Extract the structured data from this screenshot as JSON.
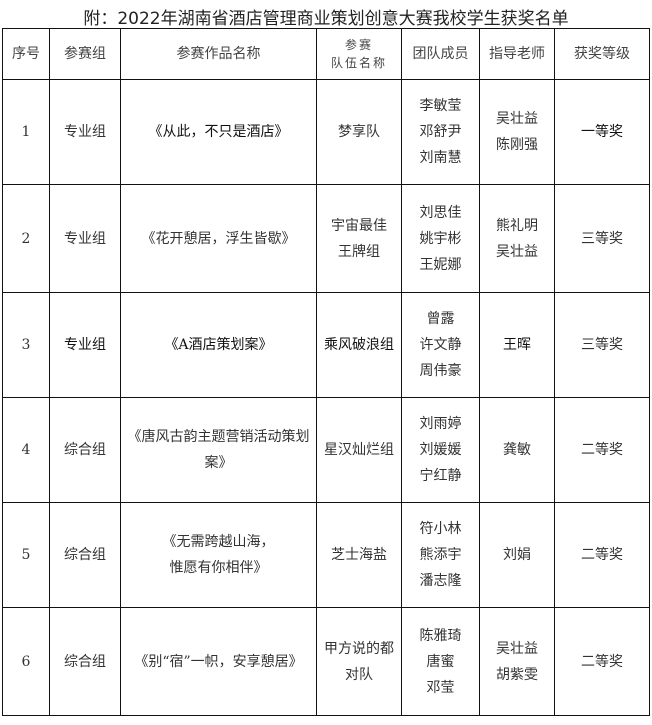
{
  "title": "附：2022年湖南省酒店管理商业策划创意大赛我校学生获奖名单",
  "headers": [
    "序号",
    "参赛组",
    "参赛作品名称",
    "参赛\n队伍名称",
    "团队成员",
    "指导老师",
    "获奖等级"
  ],
  "rows": [
    {
      "no": "1",
      "group": "专业组",
      "work": "《从此，不只是酒店》",
      "team": "梦享队",
      "members": "李敏莹\n邓舒尹\n刘南慧",
      "advisors": "吴壮益\n陈刚强",
      "award": "一等奖"
    },
    {
      "no": "2",
      "group": "专业组",
      "work": "《花开憩居，浮生皆歇》",
      "team": "宇宙最佳\n王牌组",
      "members": "刘思佳\n姚宇彬\n王妮娜",
      "advisors": "熊礼明\n吴壮益",
      "award": "三等奖"
    },
    {
      "no": "3",
      "group": "专业组",
      "work": "《A酒店策划案》",
      "team": "乘风破浪组",
      "members": "曾露\n许文静\n周伟豪",
      "advisors": "王晖",
      "award": "三等奖"
    },
    {
      "no": "4",
      "group": "综合组",
      "work": "《唐风古韵主题营销活动策划案》",
      "team": "星汉灿烂组",
      "members": "刘雨婷\n刘媛媛\n宁红静",
      "advisors": "龚敏",
      "award": "二等奖"
    },
    {
      "no": "5",
      "group": "综合组",
      "work": "《无需跨越山海，\n惟愿有你相伴》",
      "team": "芝士海盐",
      "members": "符小林\n熊添宇\n潘志隆",
      "advisors": "刘娟",
      "award": "二等奖"
    },
    {
      "no": "6",
      "group": "综合组",
      "work": "《别“宿”一帜，安享憩居》",
      "team": "甲方说的都对队",
      "members": "陈雅琦\n唐蜜\n邓莹",
      "advisors": "吴壮益\n胡紫雯",
      "award": "二等奖"
    }
  ]
}
